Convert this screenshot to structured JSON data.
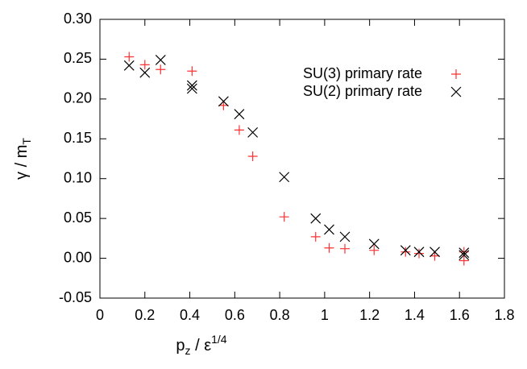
{
  "chart_data": {
    "type": "scatter",
    "x_label": {
      "base": "p",
      "sub": "z",
      "mid": " / ε",
      "sup": "1/4"
    },
    "y_label": {
      "base": "γ / m",
      "sub": "T"
    },
    "xlim": [
      0,
      1.8
    ],
    "ylim": [
      -0.05,
      0.3
    ],
    "xticks": [
      0,
      0.2,
      0.4,
      0.6,
      0.8,
      1,
      1.2,
      1.4,
      1.6,
      1.8
    ],
    "yticks": [
      {
        "value": -0.05,
        "label": "-0.05"
      },
      {
        "value": 0,
        "label": "0.00"
      },
      {
        "value": 0.05,
        "label": "0.05"
      },
      {
        "value": 0.1,
        "label": "0.10"
      },
      {
        "value": 0.15,
        "label": "0.15"
      },
      {
        "value": 0.2,
        "label": "0.20"
      },
      {
        "value": 0.25,
        "label": "0.25"
      },
      {
        "value": 0.3,
        "label": "0.30"
      }
    ],
    "legend": "top-right",
    "series": [
      {
        "name": "SU(3) primary rate",
        "color": "#ff3030",
        "marker": "plus",
        "x": [
          0.13,
          0.2,
          0.27,
          0.41,
          0.55,
          0.62,
          0.68,
          0.82,
          0.96,
          1.02,
          1.09,
          1.22,
          1.36,
          1.42,
          1.49,
          1.62,
          1.62
        ],
        "values": [
          0.253,
          0.243,
          0.237,
          0.235,
          0.192,
          0.161,
          0.128,
          0.052,
          0.027,
          0.013,
          0.012,
          0.01,
          0.008,
          0.006,
          0.003,
          0.008,
          -0.003
        ]
      },
      {
        "name": "SU(2) primary rate",
        "color": "#000000",
        "marker": "cross",
        "x": [
          0.13,
          0.2,
          0.27,
          0.41,
          0.41,
          0.55,
          0.62,
          0.68,
          0.82,
          0.96,
          1.02,
          1.09,
          1.22,
          1.36,
          1.42,
          1.49,
          1.62,
          1.62
        ],
        "values": [
          0.242,
          0.233,
          0.249,
          0.217,
          0.213,
          0.197,
          0.181,
          0.158,
          0.102,
          0.05,
          0.036,
          0.027,
          0.018,
          0.01,
          0.008,
          0.008,
          0.007,
          0.004
        ]
      }
    ]
  }
}
